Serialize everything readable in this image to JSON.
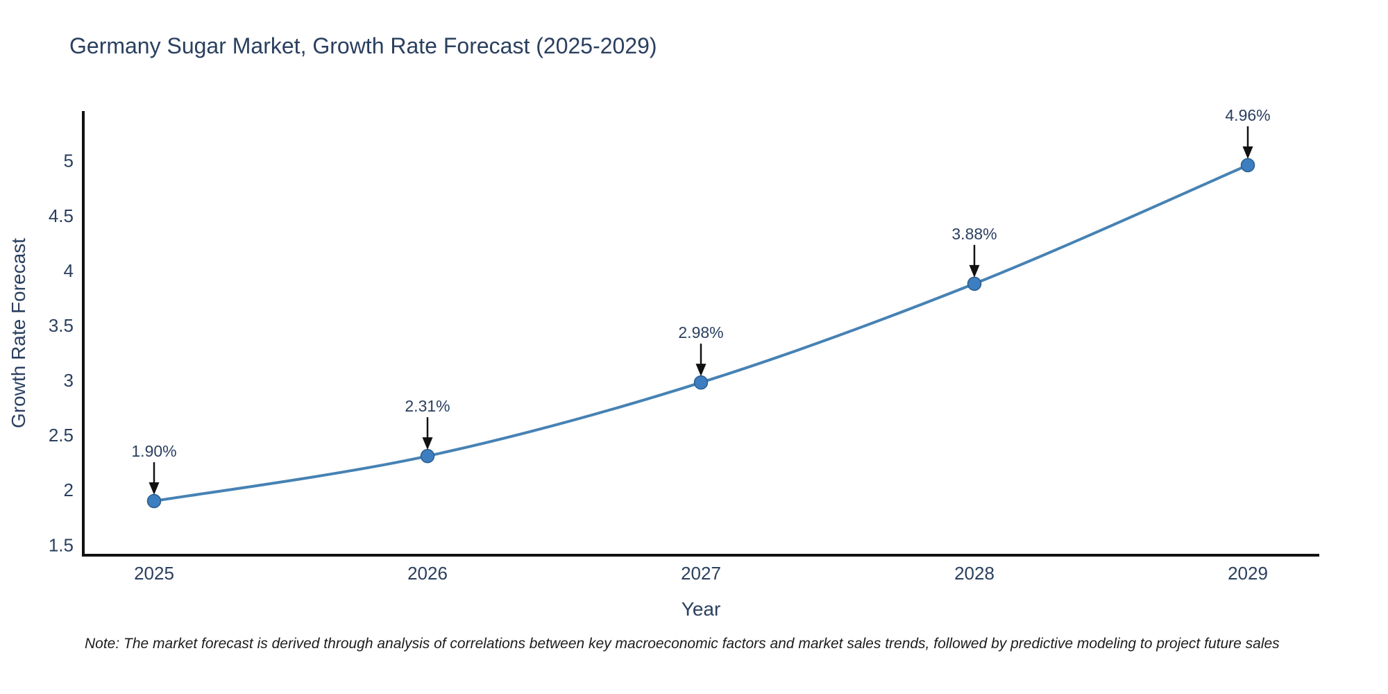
{
  "page": {
    "background": "#ffffff"
  },
  "chart_data": {
    "type": "line",
    "title": "Germany Sugar Market, Growth Rate Forecast (2025-2029)",
    "xlabel": "Year",
    "ylabel": "Growth Rate Forecast",
    "note": "Note: The market forecast is derived through analysis of correlations between key macroeconomic factors and market sales trends, followed by predictive modeling to project future sales",
    "x": [
      2025,
      2026,
      2027,
      2028,
      2029
    ],
    "values": [
      1.9,
      2.31,
      2.98,
      3.88,
      4.96
    ],
    "point_labels": [
      "1.90%",
      "2.31%",
      "2.98%",
      "3.88%",
      "4.96%"
    ],
    "x_tick_labels": [
      "2025",
      "2026",
      "2027",
      "2028",
      "2029"
    ],
    "y_ticks": [
      1.5,
      2,
      2.5,
      3,
      3.5,
      4,
      4.5,
      5
    ],
    "y_tick_labels": [
      "1.5",
      "2",
      "2.5",
      "3",
      "3.5",
      "4",
      "4.5",
      "5"
    ],
    "xlim": [
      2024.74,
      2029.26
    ],
    "ylim": [
      1.41,
      5.45
    ],
    "grid": false,
    "legend": false,
    "line_shape": "spline",
    "annotation_arrows": true,
    "colors": {
      "line": "#4682b4",
      "marker_fill": "#3d7ec0",
      "marker_edge": "#2a5d8c",
      "axis": "#111111",
      "arrow": "#111111",
      "text": "#2a3f5f",
      "note_text": "#1c1c1c"
    }
  }
}
